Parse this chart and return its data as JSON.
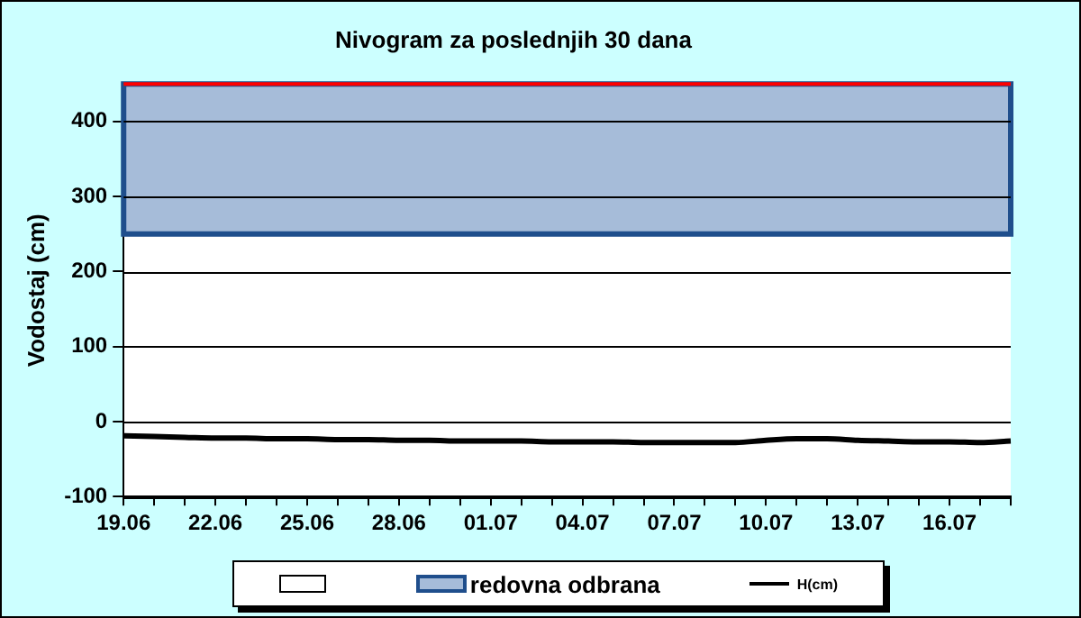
{
  "chart_data": {
    "type": "line",
    "title": "Nivogram za poslednjih 30 dana",
    "ylabel": "Vodostaj (cm)",
    "categories": [
      "19.06",
      null,
      null,
      "22.06",
      null,
      null,
      "25.06",
      null,
      null,
      "28.06",
      null,
      null,
      "01.07",
      null,
      null,
      "04.07",
      null,
      null,
      "07.07",
      null,
      null,
      "10.07",
      null,
      null,
      "13.07",
      null,
      null,
      "16.07",
      null,
      null
    ],
    "series": [
      {
        "name": "H(cm)",
        "color": "#000000",
        "values": [
          -19,
          -20,
          -21,
          -22,
          -22,
          -23,
          -23,
          -24,
          -24,
          -25,
          -25,
          -26,
          -26,
          -26,
          -27,
          -27,
          -27,
          -28,
          -28,
          -28,
          -28,
          -25,
          -23,
          -23,
          -25,
          -26,
          -27,
          -27,
          -28,
          -26
        ]
      }
    ],
    "ylim": [
      -100,
      450
    ],
    "yticks": [
      -100,
      0,
      100,
      200,
      300,
      400
    ],
    "grid": "y",
    "legend": "bottom",
    "marker": "none",
    "line_style": "solid",
    "bands": [
      {
        "axis": "y",
        "from": 250,
        "to": 450,
        "label": "redovna odbrana",
        "color": "#a6bcd9"
      }
    ],
    "ref_lines": [
      {
        "axis": "y",
        "value": 450,
        "color": "#ff0000"
      }
    ]
  }
}
